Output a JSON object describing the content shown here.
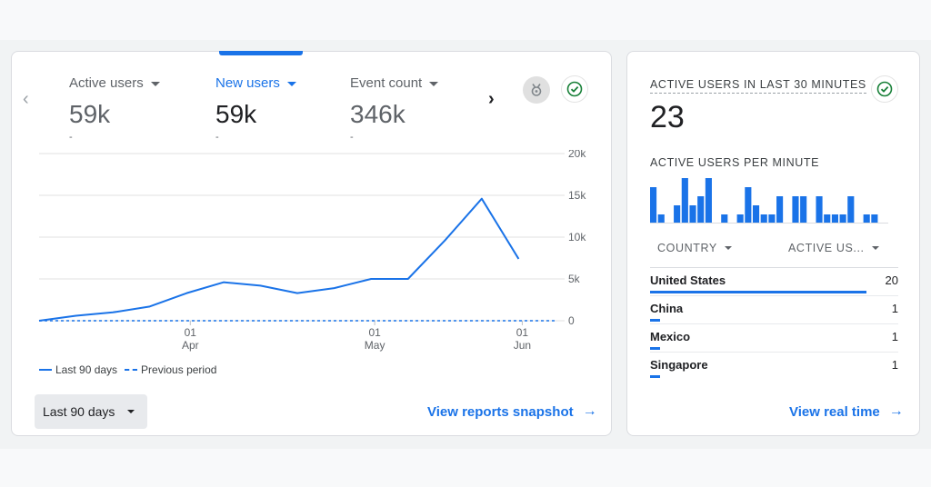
{
  "summary_card": {
    "metrics": [
      {
        "label": "Active users",
        "value": "59k",
        "delta": "-"
      },
      {
        "label": "New users",
        "value": "59k",
        "delta": "-"
      },
      {
        "label": "Event count",
        "value": "346k",
        "delta": "-"
      }
    ],
    "selected_metric": "New users",
    "legend": {
      "current": "Last 90 days",
      "previous": "Previous period"
    },
    "date_range_selector": "Last 90 days",
    "snapshot_link": "View reports snapshot",
    "icons": {
      "prev": "chevron-left-icon",
      "next": "chevron-right-icon",
      "insights": "insights-icon",
      "status": "check-circle-icon"
    }
  },
  "chart_data": {
    "type": "line",
    "x_tick_labels": [
      {
        "day": "01",
        "month": "Apr"
      },
      {
        "day": "01",
        "month": "May"
      },
      {
        "day": "01",
        "month": "Jun"
      }
    ],
    "x": [
      "Mar 9",
      "Mar 12",
      "Mar 18",
      "Mar 24",
      "Mar 31",
      "Apr 7",
      "Apr 13",
      "Apr 19",
      "Apr 26",
      "May 3",
      "May 10",
      "May 17",
      "May 25",
      "May 31",
      "Jun 8"
    ],
    "series": [
      {
        "name": "Last 90 days",
        "style": "solid",
        "values": [
          0,
          600,
          1000,
          1700,
          3300,
          4600,
          4200,
          3300,
          3900,
          5000,
          5000,
          9600,
          14600,
          7400,
          null
        ]
      },
      {
        "name": "Previous period",
        "style": "dashed",
        "values": [
          0,
          0,
          0,
          0,
          0,
          0,
          0,
          0,
          0,
          0,
          0,
          0,
          0,
          0,
          0
        ]
      }
    ],
    "y_ticks": [
      "20k",
      "15k",
      "10k",
      "5k",
      "0"
    ],
    "ylim": [
      0,
      20000
    ],
    "grid": true,
    "color": "#1a73e8"
  },
  "realtime_card": {
    "title": "ACTIVE USERS IN LAST 30 MINUTES",
    "count": "23",
    "per_minute_label": "ACTIVE USERS PER MINUTE",
    "per_minute_values": [
      4,
      1,
      0,
      2,
      5,
      2,
      3,
      5,
      0,
      1,
      0,
      1,
      4,
      2,
      1,
      1,
      3,
      0,
      3,
      3,
      0,
      3,
      1,
      1,
      1,
      3,
      0,
      1,
      1
    ],
    "table_headers": {
      "country": "COUNTRY",
      "users": "ACTIVE US..."
    },
    "rows": [
      {
        "country": "United States",
        "value": "20",
        "share": 0.87
      },
      {
        "country": "China",
        "value": "1",
        "share": 0.04
      },
      {
        "country": "Mexico",
        "value": "1",
        "share": 0.04
      },
      {
        "country": "Singapore",
        "value": "1",
        "share": 0.04
      }
    ],
    "realtime_link": "View real time"
  }
}
